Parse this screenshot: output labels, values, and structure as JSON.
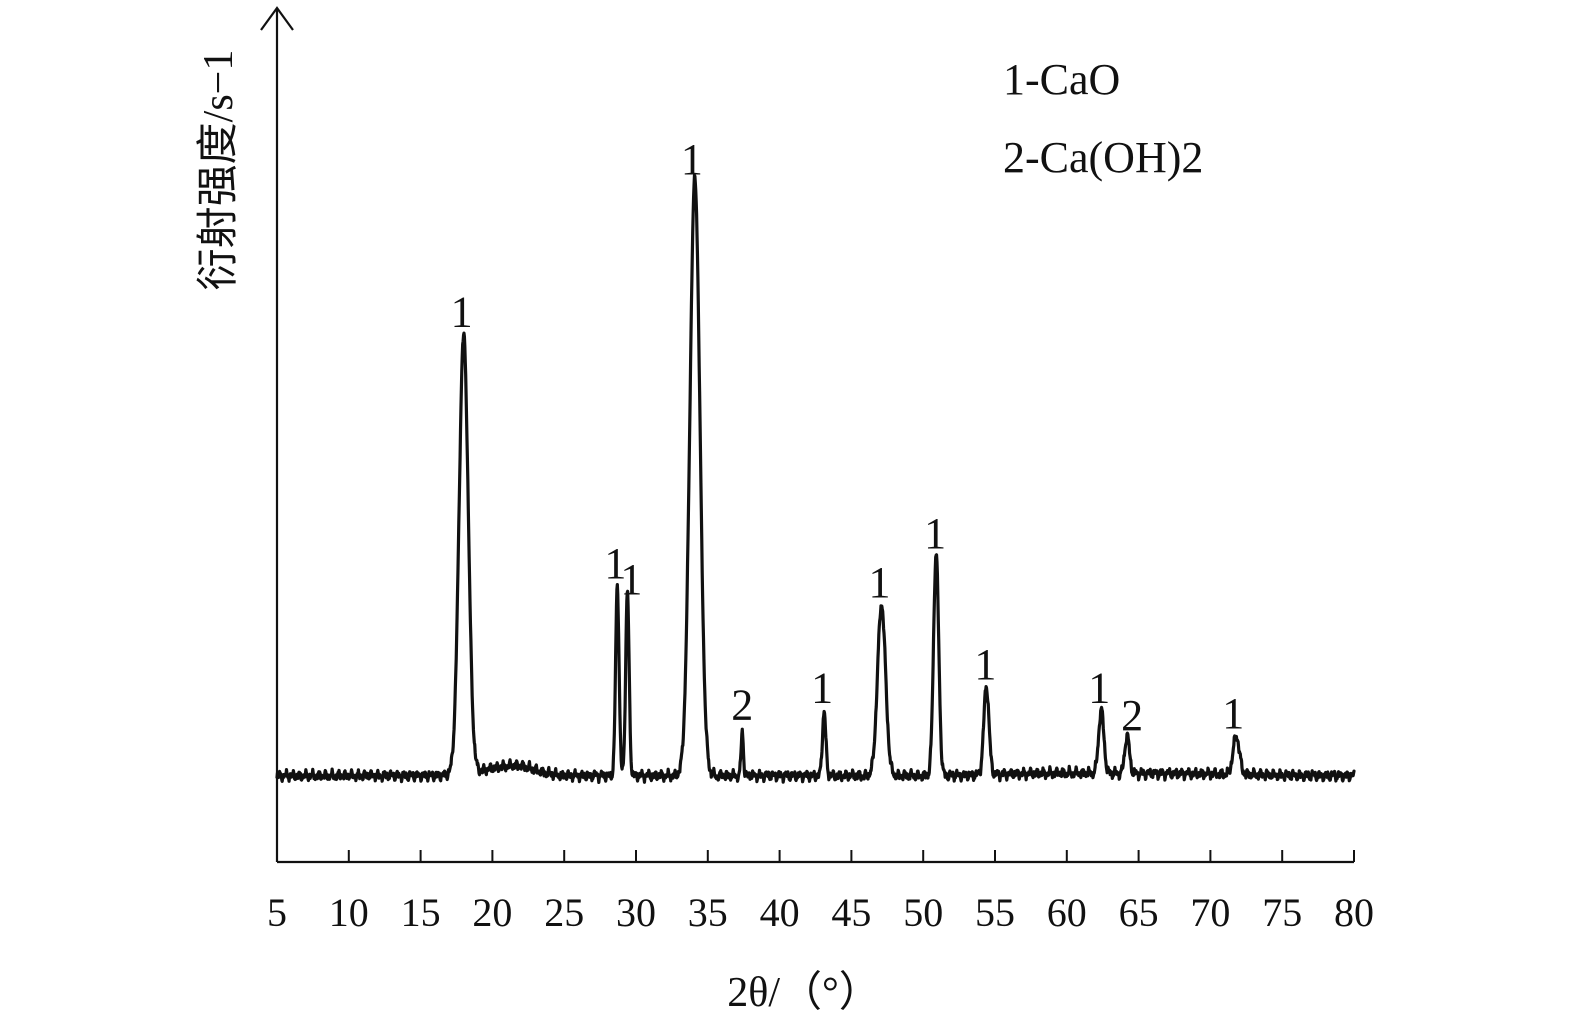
{
  "chart_data": {
    "type": "line",
    "title": "",
    "xlabel": "2θ/（°）",
    "ylabel": "衍射强度/s−1",
    "xlim": [
      5,
      80
    ],
    "x_ticks": [
      "5",
      "10",
      "15",
      "20",
      "25",
      "30",
      "35",
      "40",
      "45",
      "50",
      "55",
      "60",
      "65",
      "70",
      "75",
      "80"
    ],
    "y_ticks": [],
    "grid": false,
    "legend": {
      "placement": "top-right",
      "entries": [
        "1-CaO",
        "2-Ca(OH)2"
      ]
    },
    "series": [
      {
        "peaks": [
          {
            "x": 18.0,
            "height": 0.69,
            "label": "1"
          },
          {
            "x": 28.7,
            "height": 0.3,
            "label": "1"
          },
          {
            "x": 29.4,
            "height": 0.29,
            "label": "1"
          },
          {
            "x": 34.1,
            "height": 0.94,
            "label": "1"
          },
          {
            "x": 37.4,
            "height": 0.07,
            "label": "2"
          },
          {
            "x": 43.1,
            "height": 0.1,
            "label": "1"
          },
          {
            "x": 47.1,
            "height": 0.27,
            "label": "1"
          },
          {
            "x": 50.9,
            "height": 0.35,
            "label": "1"
          },
          {
            "x": 54.4,
            "height": 0.14,
            "label": "1"
          },
          {
            "x": 62.4,
            "height": 0.1,
            "label": "1"
          },
          {
            "x": 64.2,
            "height": 0.06,
            "label": "2"
          },
          {
            "x": 71.8,
            "height": 0.06,
            "label": "1"
          }
        ]
      }
    ],
    "annotations": [
      "1",
      "1",
      "1",
      "1",
      "2",
      "1",
      "1",
      "1",
      "1",
      "1",
      "2",
      "1"
    ],
    "color": "#111111"
  }
}
